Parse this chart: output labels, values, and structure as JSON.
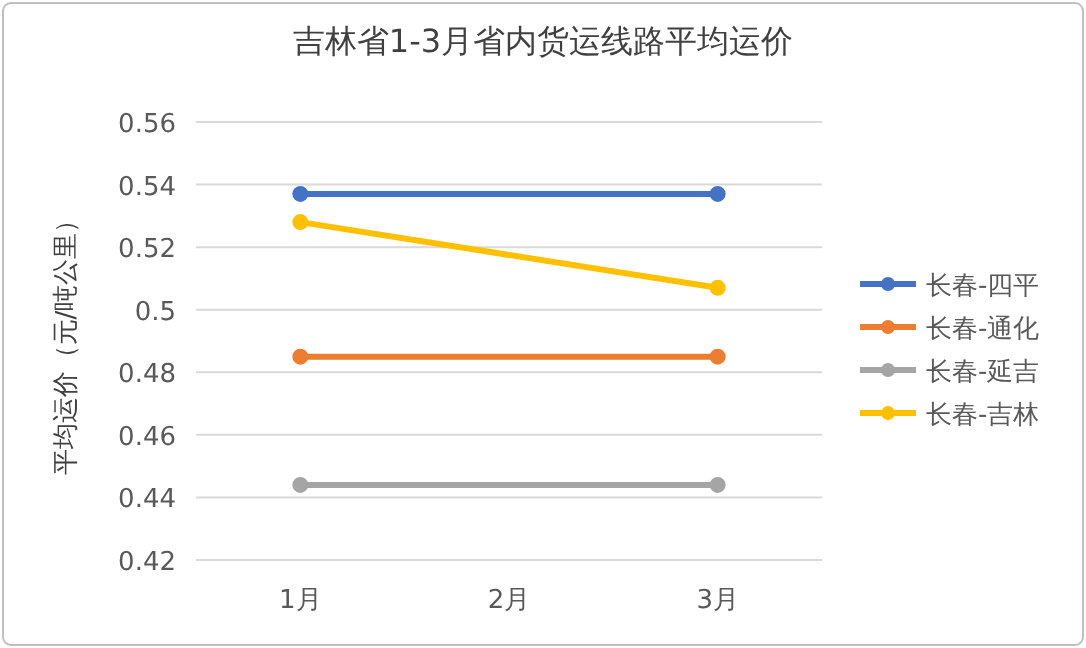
{
  "chart_data": {
    "type": "line",
    "title": "吉林省1-3月省内货运线路平均运价",
    "ylabel": "平均运价（元/吨公里）",
    "categories": [
      "1月",
      "2月",
      "3月"
    ],
    "series": [
      {
        "name": "长春-四平",
        "color": "#4472c4",
        "x": [
          "1月",
          "3月"
        ],
        "values": [
          0.537,
          0.537
        ]
      },
      {
        "name": "长春-通化",
        "color": "#ed7d31",
        "x": [
          "1月",
          "3月"
        ],
        "values": [
          0.485,
          0.485
        ]
      },
      {
        "name": "长春-延吉",
        "color": "#a5a5a5",
        "x": [
          "1月",
          "3月"
        ],
        "values": [
          0.444,
          0.444
        ]
      },
      {
        "name": "长春-吉林",
        "color": "#ffc000",
        "x": [
          "1月",
          "3月"
        ],
        "values": [
          0.528,
          0.507
        ]
      }
    ],
    "ylim": [
      0.42,
      0.56
    ],
    "yticks": [
      0.42,
      0.44,
      0.46,
      0.48,
      0.5,
      0.52,
      0.54,
      0.56
    ],
    "grid": "y",
    "legend": "right",
    "marker": "circle",
    "line_style": "solid"
  }
}
